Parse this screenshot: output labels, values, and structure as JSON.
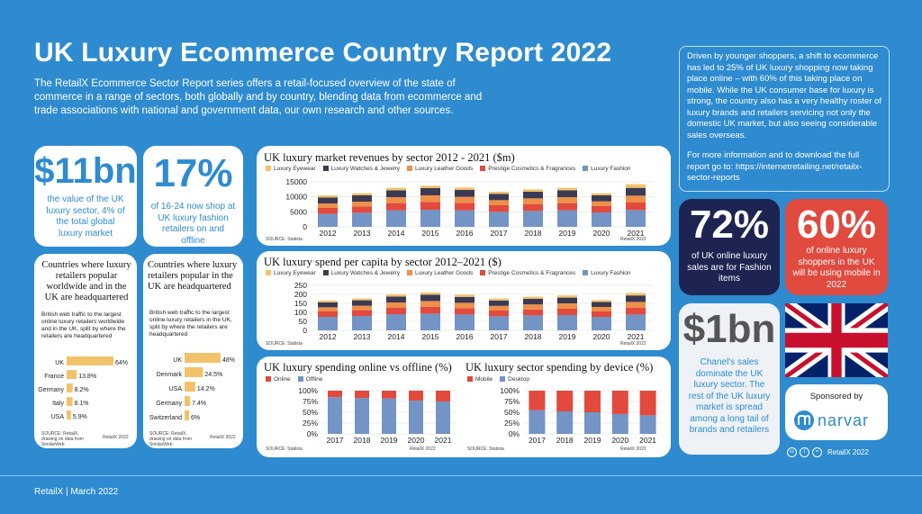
{
  "header": {
    "title": "UK Luxury Ecommerce Country Report 2022",
    "intro": "The RetailX Ecommerce Sector Report series offers a retail-focused overview of the state of commerce in a range of sectors, both globally and by country, blending data from ecommerce and trade associations with national and government data, our own research and other sources."
  },
  "stats": {
    "s1": {
      "value": "$11bn",
      "text": "the value of the UK luxury sector, 4% of the total global luxury market"
    },
    "s2": {
      "value": "17%",
      "text": "of 16-24 now shop at UK luxury fashion retailers on and offline"
    },
    "s3": {
      "value": "72%",
      "text": "of UK online luxury sales are for Fashion items"
    },
    "s4": {
      "value": "60%",
      "text": "of online luxury shoppers in the UK will be using mobile in 2022"
    },
    "s5": {
      "value": "$1bn",
      "text": "Chanel's sales dominate the UK luxury sector. The rest of the UK luxury market is spread among a long tail of brands and retailers"
    }
  },
  "right_panel": {
    "p1": "Driven by younger shoppers, a shift to ecommerce has led to 25% of UK luxury shopping now taking place online – with 60% of this taking place on mobile. While the UK consumer base for luxury is strong, the country also has a very healthy roster of luxury brands and retailers servicing not only the domestic UK market, but also seeing considerable sales overseas.",
    "p2": "For more information and to download the full report go to: https://internetretailing.net/retailx-sector-reports",
    "sponsor_label": "Sponsored by",
    "sponsor_name": "narvar",
    "credit": "RetailX 2022"
  },
  "footer": {
    "text": "RetailX | March 2022"
  },
  "colors": {
    "eyewear": "#f2c26b",
    "watches": "#3b3a55",
    "leather": "#ee8f4a",
    "cosmetics": "#e24a3d",
    "fashion": "#7394c4",
    "online": "#e24a3d",
    "offline": "#7394c4",
    "mobile": "#e24a3d",
    "desktop": "#7394c4",
    "bars": "#f2c26b",
    "brand_blue": "#2e8bd0",
    "navy": "#1e2452",
    "red": "#e04a3f"
  },
  "common": {
    "source_statista": "SOURCE: Statista",
    "cc": "RetailX 2022"
  },
  "hbar1": {
    "title": "Countries where luxury retailers popular worldwide and in the UK are headquartered",
    "subtitle": "British web traffic to the largest online luxury retailers worldwide and in the UK, split by where the retailers are headquartered",
    "source": "SOURCE: RetailX, drawing on data from SimilarWeb"
  },
  "hbar2": {
    "title": "Countries where luxury retailers popular in the UK are headquartered",
    "subtitle": "British web traffic to the largest online luxury retailers in the UK, split by where the retailers are headquartered",
    "source": "SOURCE: RetailX, drawing on data from SimilarWeb"
  },
  "chart_data": [
    {
      "type": "bar",
      "id": "revenues",
      "title": "UK luxury market revenues by sector 2012 - 2021 ($m)",
      "categories": [
        "2012",
        "2013",
        "2014",
        "2015",
        "2016",
        "2017",
        "2018",
        "2019",
        "2020",
        "2021"
      ],
      "ylim": [
        0,
        15000
      ],
      "yticks": [
        0,
        5000,
        10000,
        15000
      ],
      "series": [
        {
          "name": "Luxury Fashion",
          "values": [
            4300,
            4700,
            5500,
            5700,
            5500,
            5000,
            5300,
            5500,
            4800,
            5600
          ]
        },
        {
          "name": "Prestige Cosmetics & Fragrances",
          "values": [
            2000,
            2100,
            2400,
            2600,
            2500,
            2200,
            2300,
            2400,
            2100,
            2500
          ]
        },
        {
          "name": "Luxury Leather Goods",
          "values": [
            1500,
            1600,
            2000,
            2200,
            2000,
            1700,
            1900,
            2000,
            1600,
            2300
          ]
        },
        {
          "name": "Luxury Watches & Jewelry",
          "values": [
            2000,
            2100,
            2300,
            2400,
            2300,
            2100,
            2200,
            2300,
            2000,
            2600
          ]
        },
        {
          "name": "Luxury Eyewear",
          "values": [
            700,
            700,
            800,
            800,
            800,
            700,
            800,
            800,
            700,
            1200
          ]
        }
      ],
      "legend": "top"
    },
    {
      "type": "bar",
      "id": "percapita",
      "title": "UK luxury spend per capita by sector 2012–2021 ($)",
      "categories": [
        "2012",
        "2013",
        "2014",
        "2015",
        "2016",
        "2017",
        "2018",
        "2019",
        "2020",
        "2021"
      ],
      "ylim": [
        0,
        250
      ],
      "yticks": [
        0,
        50,
        100,
        150,
        200,
        250
      ],
      "series": [
        {
          "name": "Luxury Fashion",
          "values": [
            75,
            80,
            90,
            93,
            88,
            78,
            83,
            85,
            75,
            88
          ]
        },
        {
          "name": "Prestige Cosmetics & Fragrances",
          "values": [
            30,
            32,
            35,
            38,
            35,
            32,
            33,
            35,
            30,
            37
          ]
        },
        {
          "name": "Luxury Leather Goods",
          "values": [
            23,
            25,
            30,
            32,
            30,
            26,
            28,
            30,
            25,
            33
          ]
        },
        {
          "name": "Luxury Watches & Jewelry",
          "values": [
            28,
            30,
            33,
            35,
            33,
            30,
            31,
            32,
            28,
            36
          ]
        },
        {
          "name": "Luxury Eyewear",
          "values": [
            10,
            10,
            12,
            12,
            12,
            11,
            12,
            12,
            10,
            14
          ]
        }
      ],
      "legend": "top"
    },
    {
      "type": "bar",
      "id": "onoff",
      "title": "UK luxury spending online vs offline (%)",
      "categories": [
        "2017",
        "2018",
        "2019",
        "2020",
        "2021"
      ],
      "ylim": [
        0,
        100
      ],
      "yticks": [
        "0%",
        "25%",
        "50%",
        "75%",
        "100%"
      ],
      "series": [
        {
          "name": "Offline",
          "values": [
            85,
            83,
            82,
            77,
            75
          ]
        },
        {
          "name": "Online",
          "values": [
            15,
            17,
            18,
            23,
            25
          ]
        }
      ],
      "legend": "top-left"
    },
    {
      "type": "bar",
      "id": "device",
      "title": "UK luxury sector spending by device (%)",
      "categories": [
        "2017",
        "2018",
        "2019",
        "2020",
        "2021"
      ],
      "ylim": [
        0,
        100
      ],
      "yticks": [
        "0%",
        "25%",
        "50%",
        "75%",
        "100%"
      ],
      "series": [
        {
          "name": "Desktop",
          "values": [
            55,
            52,
            50,
            46,
            43
          ]
        },
        {
          "name": "Mobile",
          "values": [
            45,
            48,
            50,
            54,
            57
          ]
        }
      ],
      "legend": "top-left"
    },
    {
      "type": "bar",
      "id": "hq_worldwide",
      "orientation": "horizontal",
      "categories": [
        "UK",
        "France",
        "Germany",
        "Italy",
        "USA"
      ],
      "values": [
        64,
        13.8,
        8.2,
        8.1,
        5.9
      ],
      "labels": [
        "64%",
        "13.8%",
        "8.2%",
        "8.1%",
        "5.9%"
      ]
    },
    {
      "type": "bar",
      "id": "hq_uk",
      "orientation": "horizontal",
      "categories": [
        "UK",
        "Denmark",
        "USA",
        "Germany",
        "Switzerland"
      ],
      "values": [
        48,
        24.5,
        14.2,
        7.4,
        6
      ],
      "labels": [
        "48%",
        "24.5%",
        "14.2%",
        "7.4%",
        "6%"
      ]
    }
  ]
}
